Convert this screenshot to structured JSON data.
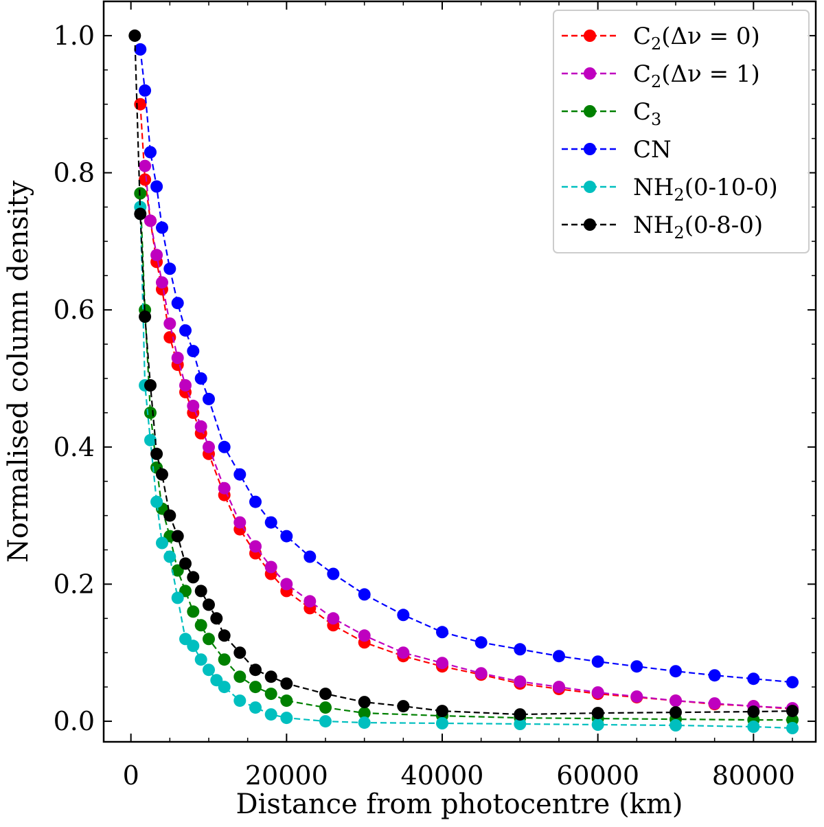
{
  "chart_data": {
    "type": "line",
    "title": "",
    "xlabel": "Distance from photocentre (km)",
    "ylabel": "Normalised column density",
    "xlim": [
      -3500,
      88000
    ],
    "ylim": [
      -0.03,
      1.05
    ],
    "xticks": [
      0,
      20000,
      40000,
      60000,
      80000
    ],
    "xtick_labels": [
      "0",
      "20000",
      "40000",
      "60000",
      "80000"
    ],
    "yticks": [
      0.0,
      0.2,
      0.4,
      0.6,
      0.8,
      1.0
    ],
    "ytick_labels": [
      "0.0",
      "0.2",
      "0.4",
      "0.6",
      "0.8",
      "1.0"
    ],
    "grid": false,
    "legend_position": "top-right",
    "line_style": "dashed with circle markers",
    "series": [
      {
        "name": "C2(Δν=0)",
        "label_main": "C",
        "label_sub": "2",
        "label_rest": "(Δν = 0)",
        "color": "#ff0000",
        "x": [
          1200,
          1800,
          2500,
          3300,
          4000,
          5000,
          6000,
          7000,
          8000,
          9000,
          10000,
          12000,
          14000,
          16000,
          18000,
          20000,
          23000,
          26000,
          30000,
          35000,
          40000,
          45000,
          50000,
          55000,
          60000,
          65000,
          70000,
          75000,
          80000,
          85000
        ],
        "y": [
          0.9,
          0.79,
          0.73,
          0.67,
          0.63,
          0.56,
          0.52,
          0.48,
          0.45,
          0.42,
          0.39,
          0.33,
          0.28,
          0.245,
          0.215,
          0.19,
          0.165,
          0.14,
          0.115,
          0.095,
          0.08,
          0.068,
          0.055,
          0.047,
          0.04,
          0.035,
          0.03,
          0.025,
          0.022,
          0.018
        ]
      },
      {
        "name": "C2(Δν=1)",
        "label_main": "C",
        "label_sub": "2",
        "label_rest": "(Δν = 1)",
        "color": "#bf00bf",
        "x": [
          1800,
          2500,
          3300,
          4000,
          5000,
          6000,
          7000,
          8000,
          9000,
          10000,
          12000,
          14000,
          16000,
          18000,
          20000,
          23000,
          26000,
          30000,
          35000,
          40000,
          45000,
          50000,
          55000,
          60000,
          65000,
          70000,
          75000,
          80000,
          85000
        ],
        "y": [
          0.81,
          0.73,
          0.68,
          0.64,
          0.58,
          0.53,
          0.49,
          0.46,
          0.43,
          0.4,
          0.34,
          0.29,
          0.255,
          0.225,
          0.2,
          0.175,
          0.15,
          0.125,
          0.1,
          0.085,
          0.07,
          0.058,
          0.05,
          0.042,
          0.036,
          0.03,
          0.026,
          0.022,
          0.019
        ]
      },
      {
        "name": "C3",
        "label_main": "C",
        "label_sub": "3",
        "label_rest": "",
        "color": "#008000",
        "x": [
          1200,
          1800,
          2500,
          3300,
          4000,
          5000,
          6000,
          7000,
          8000,
          9000,
          10000,
          12000,
          14000,
          16000,
          18000,
          20000,
          25000,
          30000,
          40000,
          50000,
          60000,
          70000,
          80000,
          85000
        ],
        "y": [
          0.77,
          0.6,
          0.45,
          0.37,
          0.31,
          0.27,
          0.22,
          0.19,
          0.16,
          0.14,
          0.12,
          0.09,
          0.065,
          0.05,
          0.04,
          0.03,
          0.02,
          0.012,
          0.008,
          0.005,
          0.004,
          0.003,
          0.002,
          0.002
        ]
      },
      {
        "name": "CN",
        "label_main": "CN",
        "label_sub": "",
        "label_rest": "",
        "color": "#0000ff",
        "x": [
          1200,
          1800,
          2500,
          3300,
          4000,
          5000,
          6000,
          7000,
          8000,
          9000,
          10000,
          12000,
          14000,
          16000,
          18000,
          20000,
          23000,
          26000,
          30000,
          35000,
          40000,
          45000,
          50000,
          55000,
          60000,
          65000,
          70000,
          75000,
          80000,
          85000
        ],
        "y": [
          0.98,
          0.92,
          0.83,
          0.78,
          0.72,
          0.66,
          0.61,
          0.57,
          0.54,
          0.5,
          0.47,
          0.4,
          0.36,
          0.32,
          0.29,
          0.27,
          0.24,
          0.215,
          0.185,
          0.155,
          0.13,
          0.115,
          0.105,
          0.095,
          0.087,
          0.08,
          0.073,
          0.067,
          0.062,
          0.057
        ]
      },
      {
        "name": "NH2(0-10-0)",
        "label_main": "NH",
        "label_sub": "2",
        "label_rest": "(0-10-0)",
        "color": "#00bfbf",
        "x": [
          1200,
          1800,
          2500,
          3300,
          4000,
          5000,
          6000,
          7000,
          8000,
          9000,
          10000,
          11000,
          12000,
          14000,
          16000,
          18000,
          20000,
          25000,
          30000,
          40000,
          50000,
          60000,
          70000,
          80000,
          85000
        ],
        "y": [
          0.75,
          0.49,
          0.41,
          0.32,
          0.26,
          0.24,
          0.18,
          0.12,
          0.11,
          0.09,
          0.075,
          0.06,
          0.05,
          0.03,
          0.02,
          0.01,
          0.005,
          0.0,
          -0.002,
          -0.003,
          -0.004,
          -0.005,
          -0.006,
          -0.008,
          -0.01
        ]
      },
      {
        "name": "NH2(0-8-0)",
        "label_main": "NH",
        "label_sub": "2",
        "label_rest": "(0-8-0)",
        "color": "#000000",
        "x": [
          500,
          1200,
          1800,
          2500,
          3300,
          4000,
          5000,
          6000,
          7000,
          8000,
          9000,
          10000,
          11000,
          12000,
          14000,
          16000,
          18000,
          20000,
          25000,
          30000,
          35000,
          40000,
          50000,
          60000,
          70000,
          80000,
          85000
        ],
        "y": [
          1.0,
          0.74,
          0.59,
          0.49,
          0.39,
          0.36,
          0.3,
          0.27,
          0.23,
          0.21,
          0.19,
          0.17,
          0.15,
          0.125,
          0.1,
          0.075,
          0.065,
          0.055,
          0.04,
          0.028,
          0.022,
          0.015,
          0.01,
          0.012,
          0.013,
          0.014,
          0.015
        ]
      }
    ]
  }
}
